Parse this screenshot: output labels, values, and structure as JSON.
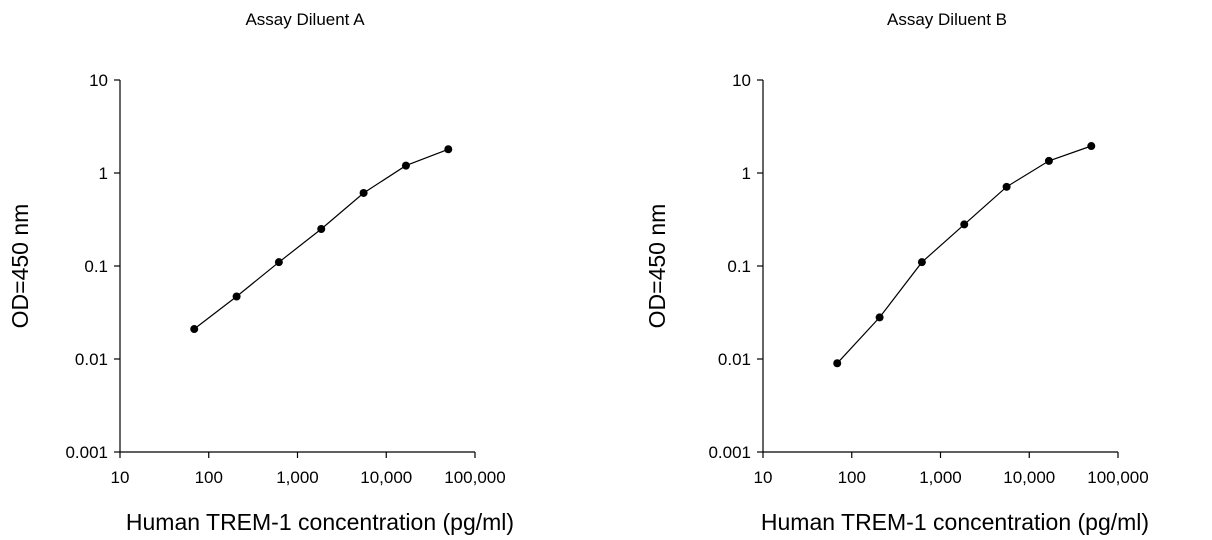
{
  "chart_data": [
    {
      "type": "line",
      "title": "Assay Diluent A",
      "xlabel": "Human TREM-1 concentration (pg/ml)",
      "ylabel": "OD=450 nm",
      "x_scale": "log",
      "y_scale": "log",
      "xlim": [
        10,
        100000
      ],
      "ylim": [
        0.001,
        10
      ],
      "x_ticks": [
        10,
        100,
        1000,
        10000,
        100000
      ],
      "x_tick_labels": [
        "10",
        "100",
        "1,000",
        "10,000",
        "100,000"
      ],
      "y_ticks": [
        0.001,
        0.01,
        0.1,
        1,
        10
      ],
      "y_tick_labels": [
        "0.001",
        "0.01",
        "0.1",
        "1",
        "10"
      ],
      "grid": false,
      "series": [
        {
          "x": [
            68.6,
            206,
            617,
            1852,
            5556,
            16667,
            50000
          ],
          "y": [
            0.021,
            0.047,
            0.11,
            0.25,
            0.61,
            1.2,
            1.8
          ]
        }
      ]
    },
    {
      "type": "line",
      "title": "Assay Diluent B",
      "xlabel": "Human TREM-1 concentration (pg/ml)",
      "ylabel": "OD=450 nm",
      "x_scale": "log",
      "y_scale": "log",
      "xlim": [
        10,
        100000
      ],
      "ylim": [
        0.001,
        10
      ],
      "x_ticks": [
        10,
        100,
        1000,
        10000,
        100000
      ],
      "x_tick_labels": [
        "10",
        "100",
        "1,000",
        "10,000",
        "100,000"
      ],
      "y_ticks": [
        0.001,
        0.01,
        0.1,
        1,
        10
      ],
      "y_tick_labels": [
        "0.001",
        "0.01",
        "0.1",
        "1",
        "10"
      ],
      "grid": false,
      "series": [
        {
          "x": [
            68.6,
            206,
            617,
            1852,
            5556,
            16667,
            50000
          ],
          "y": [
            0.009,
            0.028,
            0.11,
            0.28,
            0.71,
            1.35,
            1.95
          ]
        }
      ]
    }
  ]
}
